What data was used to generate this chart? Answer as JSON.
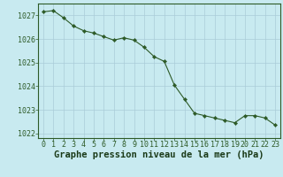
{
  "x": [
    0,
    1,
    2,
    3,
    4,
    5,
    6,
    7,
    8,
    9,
    10,
    11,
    12,
    13,
    14,
    15,
    16,
    17,
    18,
    19,
    20,
    21,
    22,
    23
  ],
  "y": [
    1027.15,
    1027.2,
    1026.9,
    1026.55,
    1026.35,
    1026.25,
    1026.1,
    1025.95,
    1026.05,
    1025.95,
    1025.65,
    1025.25,
    1025.05,
    1024.05,
    1023.45,
    1022.85,
    1022.75,
    1022.65,
    1022.55,
    1022.45,
    1022.75,
    1022.75,
    1022.65,
    1022.35
  ],
  "line_color": "#2d5a27",
  "marker": "D",
  "marker_size": 2.2,
  "bg_color": "#c8eaf0",
  "grid_color": "#aaccd8",
  "xlabel": "Graphe pression niveau de la mer (hPa)",
  "xlabel_color": "#1a3a18",
  "xlabel_fontsize": 7.5,
  "ylim": [
    1021.8,
    1027.5
  ],
  "xlim": [
    -0.5,
    23.5
  ],
  "yticks": [
    1022,
    1023,
    1024,
    1025,
    1026,
    1027
  ],
  "xticks": [
    0,
    1,
    2,
    3,
    4,
    5,
    6,
    7,
    8,
    9,
    10,
    11,
    12,
    13,
    14,
    15,
    16,
    17,
    18,
    19,
    20,
    21,
    22,
    23
  ],
  "tick_fontsize": 6.0,
  "tick_color": "#2d5a27",
  "axis_color": "#2d5a27",
  "spine_color": "#2d5a27"
}
